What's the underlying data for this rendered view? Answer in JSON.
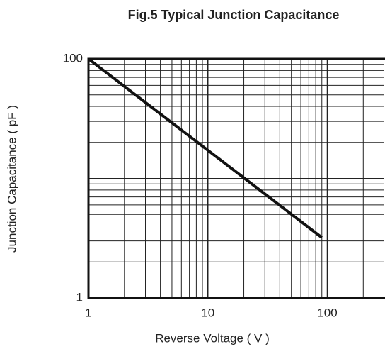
{
  "chart_data": {
    "type": "line",
    "title": "Fig.5 Typical Junction Capacitance",
    "x_label": "Reverse Voltage ( V )",
    "y_label": "Junction Capacitance ( pF )",
    "x_log": true,
    "y_log": true,
    "grid": true,
    "xlim": [
      1,
      300
    ],
    "ylim": [
      1,
      100
    ],
    "xticks": [
      1,
      10,
      100
    ],
    "yticks": [
      1,
      100
    ],
    "x_minor_ticks": [
      2,
      3,
      4,
      5,
      6,
      7,
      8,
      9,
      20,
      30,
      40,
      50,
      60,
      70,
      80,
      90,
      200
    ],
    "y_minor_ticks": [
      2,
      3,
      4,
      5,
      6,
      7,
      8,
      9,
      10,
      20,
      30,
      40,
      50,
      60,
      70,
      80,
      90
    ],
    "series": [
      {
        "color": "#111111",
        "x": [
          1,
          90
        ],
        "values": [
          100,
          3.2
        ]
      }
    ]
  }
}
